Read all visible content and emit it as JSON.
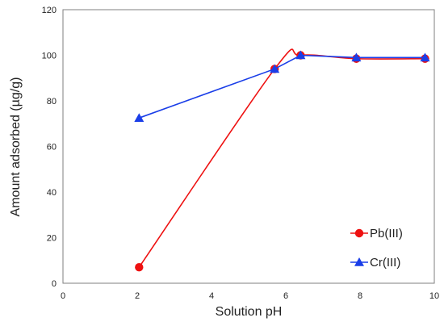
{
  "chart_data": {
    "type": "scatter",
    "xlabel": "Solution pH",
    "ylabel": "Amount adsorbed (µg/g)",
    "xlim": [
      0,
      10
    ],
    "ylim": [
      0,
      120
    ],
    "x_ticks": [
      0,
      2,
      4,
      6,
      8,
      10
    ],
    "y_ticks": [
      0,
      20,
      40,
      60,
      80,
      100,
      120
    ],
    "grid": false,
    "legend_position": "bottom-right",
    "series": [
      {
        "name": "Pb(III)",
        "color": "#ee1111",
        "marker": "circle",
        "x": [
          2.05,
          5.7,
          6.4,
          7.9,
          9.75
        ],
        "y": [
          7,
          94,
          100,
          98.5,
          98.5
        ]
      },
      {
        "name": "Cr(III)",
        "color": "#1a3ee8",
        "marker": "triangle",
        "x": [
          2.05,
          5.7,
          6.4,
          7.9,
          9.75
        ],
        "y": [
          72.5,
          94,
          100,
          99,
          99
        ]
      }
    ]
  }
}
